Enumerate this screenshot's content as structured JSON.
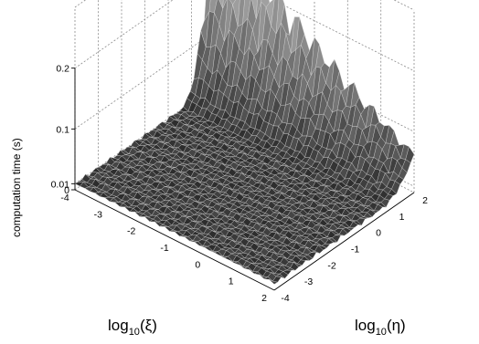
{
  "chart_data": {
    "type": "surface",
    "title": "",
    "xlabel": {
      "base": "log",
      "sub": "10",
      "arg": "(ξ)"
    },
    "ylabel": {
      "base": "log",
      "sub": "10",
      "arg": "(η)"
    },
    "zlabel": "computation time (s)",
    "x_ticks": [
      "-4",
      "-3",
      "-2",
      "-1",
      "0",
      "1",
      "2"
    ],
    "y_ticks": [
      "-4",
      "-3",
      "-2",
      "-1",
      "0",
      "1",
      "2"
    ],
    "z_ticks": [
      "0",
      "0.01",
      "0.1",
      "0.2"
    ],
    "xlim": [
      -4,
      2
    ],
    "ylim": [
      -4,
      2
    ],
    "zlim": [
      0,
      0.3
    ],
    "surface": {
      "floor_level": 0.01,
      "ridge_eta_start": 0.5,
      "ridge_peak_at_eta": 2,
      "ridge_peak_at_xi_min": 0.3,
      "ridge_peak_at_xi_max": 0.05,
      "colormap": "gray"
    }
  }
}
